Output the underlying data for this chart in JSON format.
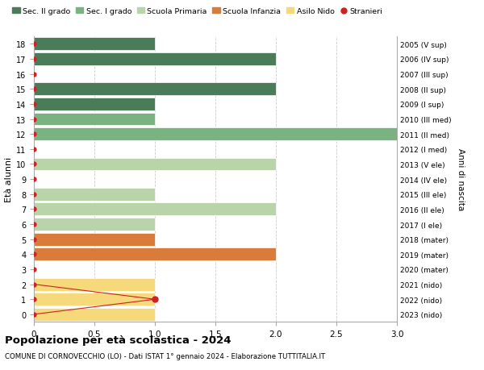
{
  "ages": [
    18,
    17,
    16,
    15,
    14,
    13,
    12,
    11,
    10,
    9,
    8,
    7,
    6,
    5,
    4,
    3,
    2,
    1,
    0
  ],
  "right_labels": [
    "2005 (V sup)",
    "2006 (IV sup)",
    "2007 (III sup)",
    "2008 (II sup)",
    "2009 (I sup)",
    "2010 (III med)",
    "2011 (II med)",
    "2012 (I med)",
    "2013 (V ele)",
    "2014 (IV ele)",
    "2015 (III ele)",
    "2016 (II ele)",
    "2017 (I ele)",
    "2018 (mater)",
    "2019 (mater)",
    "2020 (mater)",
    "2021 (nido)",
    "2022 (nido)",
    "2023 (nido)"
  ],
  "bars": [
    {
      "age": 18,
      "value": 1,
      "color": "#4a7c59"
    },
    {
      "age": 17,
      "value": 2,
      "color": "#4a7c59"
    },
    {
      "age": 16,
      "value": 0,
      "color": "#4a7c59"
    },
    {
      "age": 15,
      "value": 2,
      "color": "#4a7c59"
    },
    {
      "age": 14,
      "value": 1,
      "color": "#4a7c59"
    },
    {
      "age": 13,
      "value": 1,
      "color": "#7ab380"
    },
    {
      "age": 12,
      "value": 3,
      "color": "#7ab380"
    },
    {
      "age": 11,
      "value": 0,
      "color": "#7ab380"
    },
    {
      "age": 10,
      "value": 2,
      "color": "#b8d4a8"
    },
    {
      "age": 9,
      "value": 0,
      "color": "#b8d4a8"
    },
    {
      "age": 8,
      "value": 1,
      "color": "#b8d4a8"
    },
    {
      "age": 7,
      "value": 2,
      "color": "#b8d4a8"
    },
    {
      "age": 6,
      "value": 1,
      "color": "#b8d4a8"
    },
    {
      "age": 5,
      "value": 1,
      "color": "#d97b3a"
    },
    {
      "age": 4,
      "value": 2,
      "color": "#d97b3a"
    },
    {
      "age": 3,
      "value": 0,
      "color": "#d97b3a"
    },
    {
      "age": 2,
      "value": 1,
      "color": "#f5d97a"
    },
    {
      "age": 1,
      "value": 1,
      "color": "#f5d97a"
    },
    {
      "age": 0,
      "value": 1,
      "color": "#f5d97a"
    }
  ],
  "stranieri_line": [
    [
      0,
      2
    ],
    [
      1,
      1
    ],
    [
      0,
      0
    ]
  ],
  "stranieri_dot": [
    1,
    1
  ],
  "legend_items": [
    {
      "label": "Sec. II grado",
      "color": "#4a7c59",
      "type": "patch"
    },
    {
      "label": "Sec. I grado",
      "color": "#7ab380",
      "type": "patch"
    },
    {
      "label": "Scuola Primaria",
      "color": "#b8d4a8",
      "type": "patch"
    },
    {
      "label": "Scuola Infanzia",
      "color": "#d97b3a",
      "type": "patch"
    },
    {
      "label": "Asilo Nido",
      "color": "#f5d97a",
      "type": "patch"
    },
    {
      "label": "Stranieri",
      "color": "#cc2222",
      "type": "dot"
    }
  ],
  "ylabel": "Età alunni",
  "right_ylabel": "Anni di nascita",
  "xlim": [
    0,
    3.0
  ],
  "ylim": [
    -0.5,
    18.5
  ],
  "xticks": [
    0,
    0.5,
    1.0,
    1.5,
    2.0,
    2.5,
    3.0
  ],
  "title": "Popolazione per età scolastica - 2024",
  "subtitle": "COMUNE DI CORNOVECCHIO (LO) - Dati ISTAT 1° gennaio 2024 - Elaborazione TUTTITALIA.IT",
  "background_color": "#ffffff",
  "grid_color": "#cccccc",
  "bar_height": 0.85,
  "stranieri_line_color": "#cc2222",
  "stranieri_dot_color": "#cc2222",
  "dot_all_color": "#cc2222"
}
